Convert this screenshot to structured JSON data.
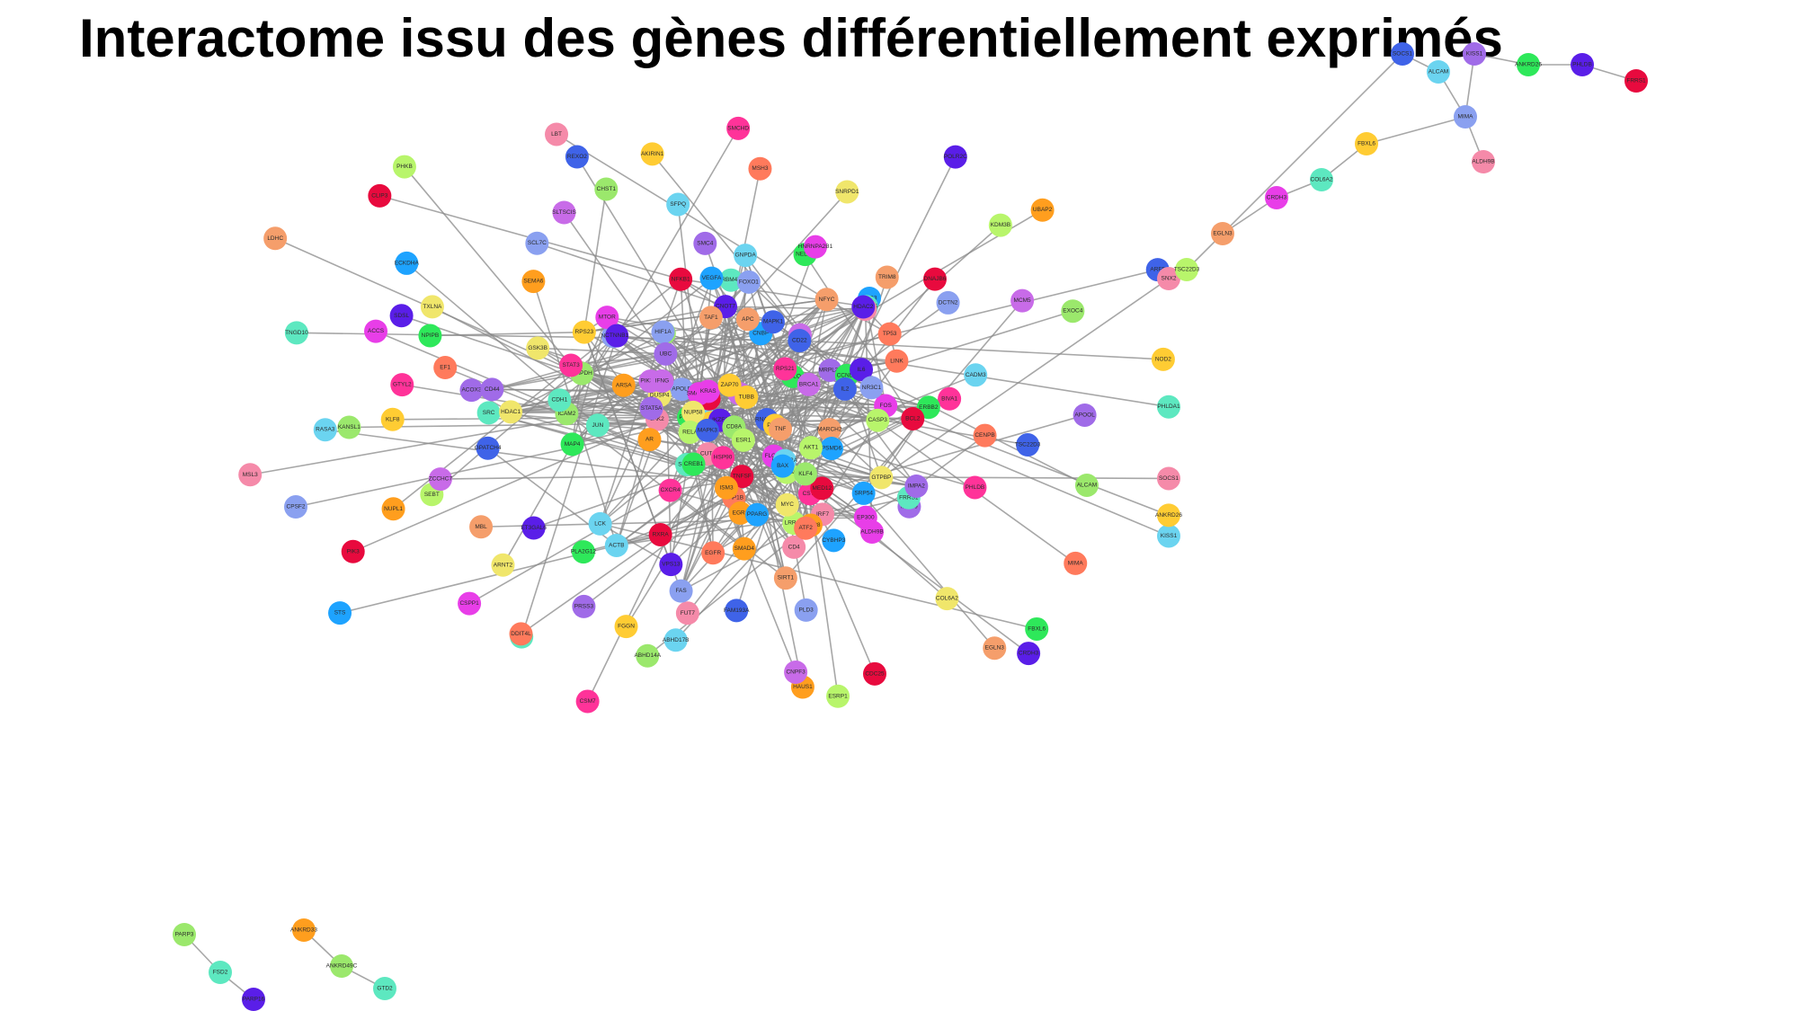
{
  "title": "Interactome issu des gènes différentiellement exprimés",
  "colors": [
    "#3f63e8",
    "#f58aa9",
    "#9be86c",
    "#6bd4f0",
    "#ffcc33",
    "#ff3399",
    "#a06be8",
    "#5de8c0",
    "#ff7a5c",
    "#2ee85a",
    "#e83ee8",
    "#f0e66b",
    "#5a1ee8",
    "#f59e6b",
    "#1ea3ff",
    "#e80a3e",
    "#b8f56b",
    "#ff9e1e",
    "#8aa0f0",
    "#c86be8"
  ],
  "peripheral_genes": [
    "TSC22D3",
    "SOCS1",
    "ALCAM",
    "KISS1",
    "ANKRD26",
    "PHLDB",
    "MMP9",
    "FRRS1",
    "MIMA",
    "FBXL6",
    "ALDH9B",
    "COL6A2",
    "CRDH3",
    "EGLN3",
    "CYBHP3",
    "CDC25",
    "ESRP1",
    "HAUS1",
    "PLD3",
    "CNPF3",
    "FAM193A",
    "FUT7",
    "ABHD14A",
    "ABHD17B",
    "FGGN",
    "CSM7",
    "PRSS3",
    "EFHB1",
    "DDIT4L",
    "PLA2G12",
    "CSPP1",
    "ARNT2",
    "ET3GAL6",
    "MBL",
    "STS",
    "PIK3",
    "SEBT",
    "NUPL1",
    "CPSF2",
    "ZCCHC7",
    "GPATCH4",
    "MSL3",
    "KANSL1",
    "RASA3",
    "KLF8",
    "GTYL2",
    "ACOX3",
    "TNGD10",
    "EF1",
    "NPIPB",
    "ACCS",
    "TXLNA",
    "SDSL",
    "LDHC",
    "ECKDHA",
    "CLIP3",
    "PHKB",
    "SEMA6",
    "SCL7C",
    "SLTSCIS",
    "REXO2",
    "LBT",
    "CHST1",
    "SFPQ",
    "AKIRIN1",
    "SMCHD",
    "SMC4",
    "RBM47",
    "MSH3",
    "NELFB",
    "HNRNPA2B1",
    "SNRPD1",
    "POLR2C",
    "TRIM8",
    "RAB3",
    "DNAJB6",
    "KDM3B",
    "UBAP2",
    "DCTN2",
    "MCM5",
    "ARF5",
    "SNX2",
    "EXOC4",
    "CADM3",
    "NOD2",
    "BIVA1",
    "APOOL",
    "PHLDA1",
    "CENPB",
    "COLQ",
    "FLOT2",
    "GTPBP",
    "CNOT7",
    "MARCH2",
    "CNBP",
    "TNFSF",
    "LRRC8",
    "ARSA",
    "APOLD",
    "STL3",
    "RNASE4",
    "CUTA",
    "MAT2A",
    "RGS10",
    "SGCE",
    "CST6",
    "IMPA2",
    "SIRPB",
    "RAP1B",
    "MAP4",
    "FOS",
    "DUSP4",
    "VPS13",
    "TAF1",
    "SRP54",
    "FGF2",
    "WNT5A",
    "ISM3",
    "NOTCH1",
    "STAT1",
    "CD22",
    "IRF7",
    "ICAM2",
    "GNPDA",
    "RPS23",
    "RPS21",
    "MRPL38",
    "MRPL15",
    "LINK",
    "POLR2",
    "SMARCA",
    "NUP58",
    "IKZF2",
    "NFYC",
    "PSMD6",
    "MED12",
    "AKT1",
    "EGR1",
    "FOXO1",
    "BRCA1",
    "MAPK1",
    "JAK2",
    "GAPDH",
    "HLA-DRA",
    "PTEN",
    "CXCR4",
    "CD44",
    "CDH1",
    "TP53",
    "CCND1",
    "KRAS",
    "MYC",
    "IL6",
    "TNF",
    "VEGFA",
    "NFKB1",
    "RELA",
    "SMAD4",
    "HIF1A",
    "PIK3R1",
    "MAPK3",
    "SOX2",
    "KLF4",
    "ACTB",
    "TUBB",
    "HSP90",
    "UBC",
    "SRC",
    "EGFR",
    "ERBB2",
    "MTOR",
    "GSK3B",
    "CTNNB1",
    "APC",
    "BAX",
    "BCL2",
    "CASP3",
    "CASP8",
    "FAS",
    "IFNG",
    "IL2",
    "CD4",
    "CD8A",
    "LCK",
    "ZAP70",
    "STAT3",
    "STAT5A",
    "JUN",
    "ATF2",
    "CREB1",
    "EP300",
    "HDAC1",
    "HDAC2",
    "SIRT1",
    "PPARG",
    "RXRA",
    "ESR1",
    "AR",
    "NR3C1"
  ],
  "isolated_genes": [
    "PARP3",
    "FSD2",
    "PARP16",
    "ANKRD33",
    "ANKRD49C",
    "GTD2"
  ]
}
